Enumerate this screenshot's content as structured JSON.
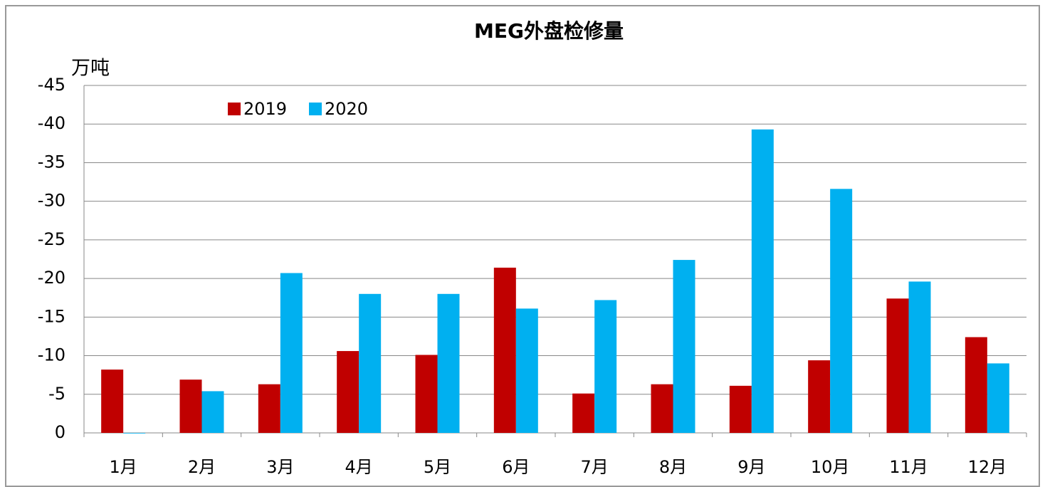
{
  "chart_data": {
    "type": "bar",
    "title": "MEG外盘检修量",
    "y_label": "万吨",
    "categories": [
      "1月",
      "2月",
      "3月",
      "4月",
      "5月",
      "6月",
      "7月",
      "8月",
      "9月",
      "10月",
      "11月",
      "12月"
    ],
    "series": [
      {
        "name": "2019",
        "color": "#c00000",
        "values": [
          -8.2,
          -6.9,
          -6.3,
          -10.6,
          -10.1,
          -21.4,
          -5.1,
          -6.3,
          -6.1,
          -9.4,
          -17.4,
          -12.4
        ]
      },
      {
        "name": "2020",
        "color": "#00b0f0",
        "values": [
          0,
          -5.4,
          -20.7,
          -18.0,
          -18.0,
          -16.1,
          -17.2,
          -22.4,
          -39.3,
          -31.6,
          -19.6,
          -9.0
        ]
      }
    ],
    "ylim": [
      0,
      -45
    ],
    "yticks": [
      0,
      -5,
      -10,
      -15,
      -20,
      -25,
      -30,
      -35,
      -40,
      -45
    ],
    "grid": true
  }
}
